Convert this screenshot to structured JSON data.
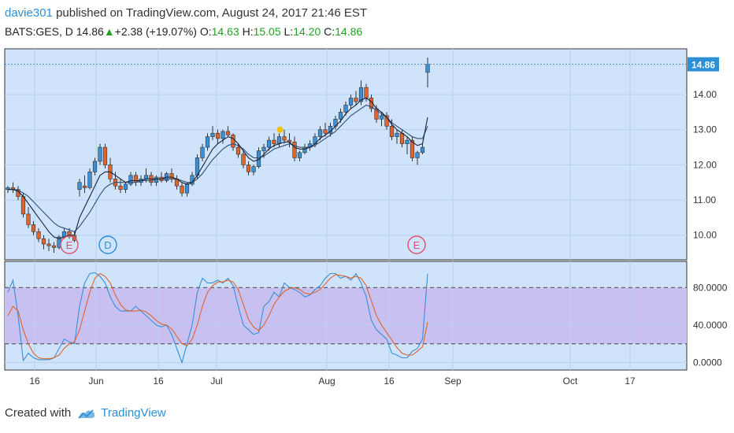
{
  "header": {
    "user": "davie301",
    "published": "published on TradingView.com, August 24, 2017 21:46 EST"
  },
  "ticker": {
    "symbol": "BATS:GES, D",
    "last": "14.86",
    "change": "+2.38 (+19.07%)",
    "o_label": "O:",
    "o": "14.63",
    "h_label": "H:",
    "h": "15.05",
    "l_label": "L:",
    "l": "14.20",
    "c_label": "C:",
    "c": "14.86"
  },
  "footer": {
    "created_with": "Created with",
    "brand": "TradingView"
  },
  "colors": {
    "up": "#3b8fd4",
    "down": "#e0642c",
    "ma_fast": "#1a2533",
    "ma_slow": "#2f4f7a",
    "band": "#c8c0f0",
    "stoch_k": "#3b8fd4",
    "stoch_d": "#e0642c",
    "accent": "#2d8fd5"
  },
  "chart_data": [
    {
      "type": "candlestick",
      "ylim": [
        9.3,
        15.3
      ],
      "yticks": [
        "10.00",
        "11.00",
        "12.00",
        "13.00",
        "14.00"
      ],
      "last_price_label": "14.86",
      "xtick_labels": [
        "16",
        "Jun",
        "16",
        "Jul",
        "Aug",
        "16",
        "Sep",
        "Oct",
        "17"
      ],
      "events": [
        {
          "label": "E",
          "color": "#e0506a"
        },
        {
          "label": "D",
          "color": "#2d8fd5"
        },
        {
          "label": "E",
          "color": "#e0506a"
        }
      ],
      "candles": [
        [
          11.3,
          11.4,
          11.2,
          11.35
        ],
        [
          11.35,
          11.5,
          11.2,
          11.3
        ],
        [
          11.3,
          11.4,
          11.0,
          11.1
        ],
        [
          11.1,
          11.2,
          10.5,
          10.6
        ],
        [
          10.6,
          10.8,
          10.2,
          10.3
        ],
        [
          10.3,
          10.4,
          10.0,
          10.1
        ],
        [
          10.1,
          10.2,
          9.8,
          9.9
        ],
        [
          9.9,
          10.0,
          9.6,
          9.75
        ],
        [
          9.75,
          9.9,
          9.55,
          9.7
        ],
        [
          9.7,
          9.8,
          9.5,
          9.65
        ],
        [
          9.65,
          10.0,
          9.6,
          9.95
        ],
        [
          9.95,
          10.2,
          9.9,
          10.1
        ],
        [
          10.1,
          10.2,
          9.9,
          10.0
        ],
        [
          10.0,
          10.1,
          9.8,
          9.85
        ],
        [
          11.3,
          11.6,
          11.1,
          11.5
        ],
        [
          11.4,
          11.7,
          11.2,
          11.35
        ],
        [
          11.35,
          11.9,
          11.3,
          11.8
        ],
        [
          11.8,
          12.2,
          11.7,
          12.1
        ],
        [
          12.1,
          12.6,
          12.0,
          12.5
        ],
        [
          12.5,
          12.6,
          11.9,
          12.0
        ],
        [
          12.0,
          12.2,
          11.5,
          11.6
        ],
        [
          11.6,
          11.8,
          11.3,
          11.4
        ],
        [
          11.4,
          11.6,
          11.2,
          11.3
        ],
        [
          11.3,
          11.5,
          11.2,
          11.45
        ],
        [
          11.45,
          11.8,
          11.4,
          11.7
        ],
        [
          11.7,
          11.8,
          11.4,
          11.5
        ],
        [
          11.5,
          11.7,
          11.4,
          11.6
        ],
        [
          11.6,
          11.9,
          11.5,
          11.7
        ],
        [
          11.7,
          11.8,
          11.4,
          11.5
        ],
        [
          11.5,
          11.7,
          11.4,
          11.65
        ],
        [
          11.65,
          11.8,
          11.5,
          11.55
        ],
        [
          11.55,
          11.8,
          11.5,
          11.75
        ],
        [
          11.75,
          11.9,
          11.5,
          11.6
        ],
        [
          11.6,
          11.7,
          11.3,
          11.4
        ],
        [
          11.4,
          11.5,
          11.1,
          11.2
        ],
        [
          11.2,
          11.5,
          11.1,
          11.45
        ],
        [
          11.45,
          11.8,
          11.4,
          11.7
        ],
        [
          11.7,
          12.3,
          11.6,
          12.2
        ],
        [
          12.2,
          12.6,
          12.1,
          12.5
        ],
        [
          12.5,
          12.9,
          12.4,
          12.8
        ],
        [
          12.8,
          13.1,
          12.7,
          12.9
        ],
        [
          12.9,
          13.0,
          12.6,
          12.75
        ],
        [
          12.75,
          13.0,
          12.6,
          12.95
        ],
        [
          12.95,
          13.1,
          12.8,
          12.85
        ],
        [
          12.85,
          12.9,
          12.4,
          12.5
        ],
        [
          12.5,
          12.6,
          12.2,
          12.3
        ],
        [
          12.3,
          12.4,
          11.9,
          12.0
        ],
        [
          12.0,
          12.1,
          11.7,
          11.8
        ],
        [
          11.8,
          12.0,
          11.7,
          11.95
        ],
        [
          11.95,
          12.5,
          11.9,
          12.4
        ],
        [
          12.4,
          12.6,
          12.2,
          12.5
        ],
        [
          12.5,
          12.8,
          12.4,
          12.7
        ],
        [
          12.7,
          12.9,
          12.5,
          12.6
        ],
        [
          12.6,
          12.9,
          12.5,
          12.8
        ],
        [
          12.8,
          13.0,
          12.6,
          12.7
        ],
        [
          12.7,
          12.9,
          12.5,
          12.65
        ],
        [
          12.65,
          12.8,
          12.1,
          12.2
        ],
        [
          12.2,
          12.4,
          12.1,
          12.35
        ],
        [
          12.35,
          12.6,
          12.3,
          12.5
        ],
        [
          12.5,
          12.7,
          12.4,
          12.6
        ],
        [
          12.6,
          12.9,
          12.5,
          12.8
        ],
        [
          12.8,
          13.1,
          12.7,
          13.0
        ],
        [
          13.0,
          13.2,
          12.8,
          12.9
        ],
        [
          12.9,
          13.2,
          12.8,
          13.1
        ],
        [
          13.1,
          13.4,
          13.0,
          13.3
        ],
        [
          13.3,
          13.6,
          13.2,
          13.5
        ],
        [
          13.5,
          13.8,
          13.4,
          13.7
        ],
        [
          13.7,
          14.0,
          13.6,
          13.9
        ],
        [
          13.9,
          14.1,
          13.7,
          13.8
        ],
        [
          13.8,
          14.4,
          13.7,
          14.2
        ],
        [
          14.2,
          14.3,
          13.8,
          13.9
        ],
        [
          13.9,
          14.0,
          13.5,
          13.6
        ],
        [
          13.6,
          13.7,
          13.2,
          13.3
        ],
        [
          13.3,
          13.5,
          13.1,
          13.4
        ],
        [
          13.4,
          13.5,
          13.0,
          13.1
        ],
        [
          13.1,
          13.3,
          12.7,
          12.8
        ],
        [
          12.8,
          13.0,
          12.6,
          12.9
        ],
        [
          12.9,
          13.0,
          12.5,
          12.6
        ],
        [
          12.6,
          12.8,
          12.3,
          12.7
        ],
        [
          12.7,
          12.8,
          12.1,
          12.2
        ],
        [
          12.2,
          12.4,
          12.0,
          12.35
        ],
        [
          12.35,
          12.6,
          12.3,
          12.5
        ],
        [
          14.63,
          15.05,
          14.2,
          14.86
        ]
      ],
      "ma_fast": [
        11.3,
        11.3,
        11.25,
        11.1,
        10.9,
        10.7,
        10.5,
        10.3,
        10.1,
        9.95,
        9.9,
        9.95,
        10.0,
        10.0,
        10.5,
        10.8,
        11.1,
        11.4,
        11.7,
        11.8,
        11.8,
        11.7,
        11.6,
        11.5,
        11.55,
        11.55,
        11.55,
        11.6,
        11.6,
        11.6,
        11.6,
        11.65,
        11.65,
        11.6,
        11.5,
        11.45,
        11.5,
        11.7,
        11.95,
        12.2,
        12.45,
        12.6,
        12.7,
        12.8,
        12.75,
        12.6,
        12.4,
        12.2,
        12.1,
        12.15,
        12.3,
        12.45,
        12.55,
        12.6,
        12.65,
        12.65,
        12.5,
        12.45,
        12.45,
        12.5,
        12.6,
        12.75,
        12.85,
        12.95,
        13.1,
        13.25,
        13.45,
        13.6,
        13.7,
        13.85,
        13.9,
        13.8,
        13.6,
        13.5,
        13.35,
        13.15,
        13.0,
        12.9,
        12.8,
        12.65,
        12.55,
        12.6,
        13.35
      ],
      "ma_slow": [
        11.3,
        11.3,
        11.28,
        11.2,
        11.1,
        10.95,
        10.8,
        10.65,
        10.5,
        10.35,
        10.25,
        10.2,
        10.15,
        10.1,
        10.25,
        10.45,
        10.65,
        10.9,
        11.15,
        11.35,
        11.45,
        11.5,
        11.5,
        11.5,
        11.5,
        11.5,
        11.55,
        11.55,
        11.55,
        11.6,
        11.6,
        11.6,
        11.6,
        11.6,
        11.55,
        11.5,
        11.5,
        11.6,
        11.75,
        11.95,
        12.15,
        12.3,
        12.45,
        12.55,
        12.6,
        12.55,
        12.45,
        12.3,
        12.2,
        12.2,
        12.25,
        12.35,
        12.45,
        12.5,
        12.55,
        12.6,
        12.55,
        12.5,
        12.5,
        12.5,
        12.55,
        12.65,
        12.75,
        12.85,
        12.95,
        13.1,
        13.25,
        13.4,
        13.5,
        13.6,
        13.7,
        13.65,
        13.55,
        13.45,
        13.35,
        13.2,
        13.1,
        13.0,
        12.9,
        12.8,
        12.75,
        12.75,
        13.1
      ]
    },
    {
      "type": "line",
      "ylim": [
        -8,
        108
      ],
      "yticks": [
        "0.0000",
        "40.0000",
        "80.0000"
      ],
      "band": [
        20,
        80
      ],
      "series": [
        {
          "values": [
            75,
            88,
            50,
            2,
            10,
            5,
            3,
            3,
            3,
            5,
            15,
            25,
            22,
            20,
            60,
            85,
            95,
            96,
            92,
            85,
            70,
            60,
            55,
            55,
            55,
            60,
            55,
            50,
            45,
            40,
            38,
            40,
            30,
            15,
            0,
            20,
            40,
            75,
            90,
            85,
            85,
            88,
            85,
            90,
            82,
            60,
            40,
            35,
            30,
            32,
            60,
            65,
            75,
            70,
            85,
            80,
            78,
            75,
            70,
            72,
            78,
            82,
            90,
            95,
            95,
            90,
            92,
            88,
            95,
            85,
            70,
            45,
            35,
            30,
            25,
            10,
            8,
            5,
            5,
            12,
            15,
            25,
            95
          ]
        },
        {
          "values": [
            50,
            60,
            55,
            35,
            20,
            10,
            5,
            4,
            4,
            5,
            8,
            15,
            20,
            22,
            35,
            55,
            75,
            90,
            95,
            92,
            85,
            72,
            62,
            56,
            55,
            55,
            56,
            54,
            50,
            45,
            41,
            40,
            36,
            28,
            20,
            18,
            25,
            40,
            60,
            75,
            82,
            86,
            86,
            88,
            86,
            78,
            62,
            46,
            38,
            34,
            40,
            50,
            62,
            70,
            76,
            79,
            80,
            78,
            74,
            73,
            75,
            78,
            84,
            90,
            94,
            93,
            92,
            90,
            92,
            90,
            82,
            66,
            50,
            40,
            32,
            24,
            16,
            10,
            8,
            8,
            12,
            17,
            43
          ]
        }
      ]
    }
  ]
}
